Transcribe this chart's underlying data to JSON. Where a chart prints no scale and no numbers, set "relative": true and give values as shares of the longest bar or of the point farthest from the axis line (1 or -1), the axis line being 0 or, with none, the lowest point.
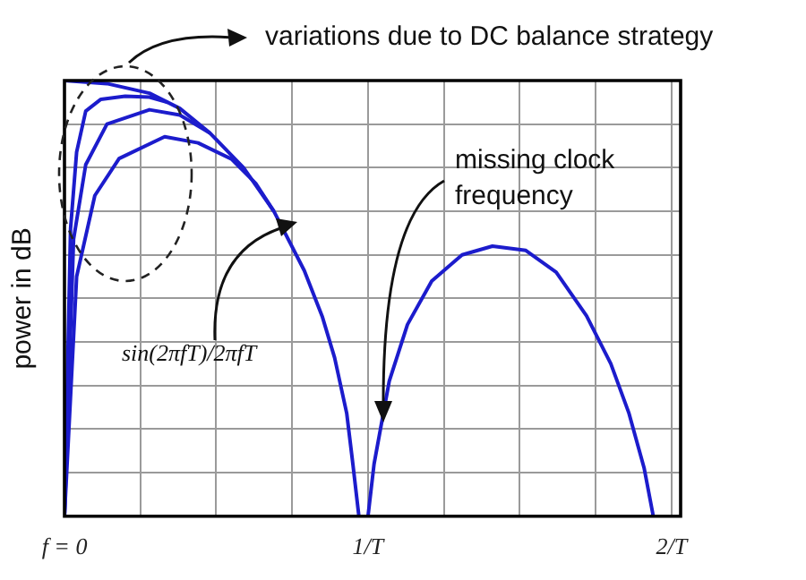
{
  "chart_data": {
    "type": "line",
    "relative": true,
    "ylabel": "power in dB",
    "xlim": [
      0,
      2.03
    ],
    "xticks": [
      {
        "value": 0,
        "label": "f = 0"
      },
      {
        "value": 0.25,
        "label": null
      },
      {
        "value": 0.5,
        "label": null
      },
      {
        "value": 0.75,
        "label": null
      },
      {
        "value": 1,
        "label": "1/T"
      },
      {
        "value": 1.25,
        "label": null
      },
      {
        "value": 1.5,
        "label": null
      },
      {
        "value": 1.75,
        "label": null
      },
      {
        "value": 2,
        "label": "2/T"
      }
    ],
    "grid": true,
    "legend": false,
    "marker": "none",
    "line_style": "solid",
    "annotations": [
      "variations due to DC balance strategy",
      "missing clock frequency",
      "sin(2πfT)/2πfT"
    ],
    "series": [
      {
        "color": "#1c1ccc",
        "x": [
          0,
          0.14,
          0.28,
          0.38,
          0.48,
          0.59,
          0.69,
          0.79,
          0.85,
          0.89,
          0.93,
          0.95,
          0.97,
          0.985,
          1,
          1.02,
          1.07,
          1.13,
          1.21,
          1.31,
          1.41,
          1.52,
          1.62,
          1.72,
          1.8,
          1.86,
          1.91,
          1.94
        ],
        "values": [
          1,
          0.993,
          0.971,
          0.936,
          0.879,
          0.8,
          0.7,
          0.564,
          0.457,
          0.364,
          0.236,
          0.121,
          0,
          null,
          0,
          0.12,
          0.31,
          0.44,
          0.54,
          0.6,
          0.62,
          0.61,
          0.56,
          0.46,
          0.35,
          0.236,
          0.11,
          0
        ]
      },
      {
        "color": "#1c1ccc",
        "x": [
          0,
          0.02,
          0.04,
          0.07,
          0.12,
          0.2,
          0.28,
          0.34
        ],
        "values": [
          0,
          0.66,
          0.836,
          0.93,
          0.957,
          0.964,
          0.962,
          0.95
        ]
      },
      {
        "color": "#1c1ccc",
        "x": [
          0,
          0.03,
          0.07,
          0.14,
          0.28,
          0.38,
          0.48
        ],
        "values": [
          0,
          0.636,
          0.807,
          0.9,
          0.933,
          0.921,
          0.879
        ]
      },
      {
        "color": "#1c1ccc",
        "x": [
          0,
          0.04,
          0.1,
          0.18,
          0.33,
          0.44,
          0.55,
          0.63,
          0.69
        ],
        "values": [
          0,
          0.55,
          0.736,
          0.821,
          0.871,
          0.857,
          0.82,
          0.764,
          0.7
        ]
      }
    ]
  }
}
